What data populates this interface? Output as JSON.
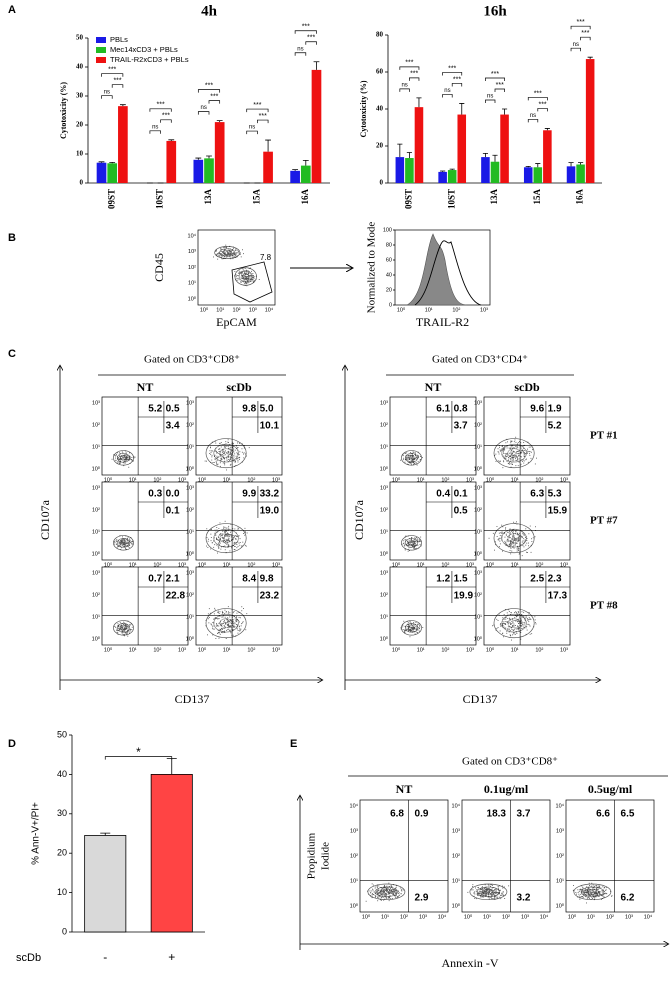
{
  "panel_labels": [
    "A",
    "B",
    "C",
    "D",
    "E"
  ],
  "chart_data": [
    {
      "type": "bar",
      "title": "4h",
      "y_label": "Cytotoxicity (%)",
      "categories": [
        "09ST",
        "10ST",
        "13A",
        "15A",
        "16A"
      ],
      "series": [
        {
          "name": "PBLs",
          "color": "#1a1ae6",
          "values": [
            7,
            0,
            8,
            0,
            4.2
          ],
          "errors": [
            0.3,
            0,
            0.6,
            0,
            0.4
          ]
        },
        {
          "name": "Mec14xCD3 + PBLs",
          "color": "#22bb22",
          "values": [
            6.8,
            0,
            8.5,
            0,
            6
          ],
          "errors": [
            0.3,
            0,
            0.8,
            0,
            1.8
          ]
        },
        {
          "name": "TRAIL-R2xCD3 + PBLs",
          "color": "#ee1111",
          "values": [
            26.5,
            14.5,
            21,
            10.8,
            39
          ],
          "errors": [
            0.5,
            0.4,
            0.5,
            4,
            2.8
          ]
        }
      ],
      "ylim": [
        0,
        50
      ],
      "yticks": [
        0,
        10,
        20,
        30,
        40,
        50
      ],
      "legend": "upper-left",
      "significance": [
        [
          "ns",
          "***",
          "***"
        ],
        [
          "ns",
          "***",
          "***"
        ],
        [
          "ns",
          "***",
          "***"
        ],
        [
          "ns",
          "***",
          "***"
        ],
        [
          "ns",
          "***",
          "***"
        ]
      ]
    },
    {
      "type": "bar",
      "title": "16h",
      "y_label": "Cytotoxicity (%)",
      "categories": [
        "09ST",
        "10ST",
        "13A",
        "15A",
        "16A"
      ],
      "series": [
        {
          "name": "PBLs",
          "color": "#1a1ae6",
          "values": [
            14,
            6,
            14,
            8.5,
            9
          ],
          "errors": [
            7,
            0.5,
            2,
            0.5,
            2
          ]
        },
        {
          "name": "Mec14xCD3 + PBLs",
          "color": "#22bb22",
          "values": [
            13.5,
            7,
            11.5,
            8.5,
            10
          ],
          "errors": [
            3,
            0.5,
            3.5,
            2,
            1
          ]
        },
        {
          "name": "TRAIL-R2xCD3 + PBLs",
          "color": "#ee1111",
          "values": [
            41,
            37,
            37,
            28.5,
            67
          ],
          "errors": [
            5,
            6,
            3,
            1,
            1
          ]
        }
      ],
      "ylim": [
        0,
        80
      ],
      "yticks": [
        0,
        20,
        40,
        60,
        80
      ],
      "significance": [
        [
          "ns",
          "***",
          "***"
        ],
        [
          "ns",
          "***",
          "***"
        ],
        [
          "ns",
          "***",
          "***"
        ],
        [
          "ns",
          "***",
          "***"
        ],
        [
          "ns",
          "***",
          "***"
        ]
      ]
    },
    {
      "type": "bar",
      "y_label": "% Ann-V+/PI+",
      "x_label": "scDb",
      "categories": [
        "-",
        "+"
      ],
      "values": [
        24.5,
        40
      ],
      "errors": [
        0.6,
        4
      ],
      "colors": [
        "#d9d9d9",
        "#ff4444"
      ],
      "ylim": [
        0,
        50
      ],
      "yticks": [
        0,
        10,
        20,
        30,
        40,
        50
      ],
      "significance": [
        "*"
      ]
    }
  ],
  "panel_b": {
    "contour": {
      "y_label": "CD45",
      "x_label": "EpCAM",
      "gate_value": "7.8",
      "xticks": [
        "10⁰",
        "10¹",
        "10²",
        "10³",
        "10⁴"
      ],
      "yticks": [
        "10⁰",
        "10¹",
        "10²",
        "10³",
        "10⁴"
      ]
    },
    "histogram": {
      "y_label": "Normalized to Mode",
      "x_label": "TRAIL-R2",
      "ylim": [
        0,
        100
      ],
      "yticks": [
        0,
        20,
        40,
        60,
        80,
        100
      ],
      "xticks": [
        "10⁰",
        "10¹",
        "10²",
        "10³"
      ]
    }
  },
  "panel_c": {
    "ticks": [
      "10⁰",
      "10¹",
      "10²",
      "10³"
    ],
    "patients": [
      "PT #1",
      "PT #7",
      "PT #8"
    ],
    "groups": [
      {
        "header": "Gated on CD3⁺CD8⁺",
        "conditions": [
          "NT",
          "scDb"
        ],
        "y_label": "CD107a",
        "x_label": "CD137",
        "quadrants": [
          [
            [
              "5.2",
              "0.5",
              "3.4"
            ],
            [
              "9.8",
              "5.0",
              "10.1"
            ]
          ],
          [
            [
              "0.3",
              "0.0",
              "0.1"
            ],
            [
              "9.9",
              "33.2",
              "19.0"
            ]
          ],
          [
            [
              "0.7",
              "2.1",
              "22.8"
            ],
            [
              "8.4",
              "9.8",
              "23.2"
            ]
          ]
        ]
      },
      {
        "header": "Gated on CD3⁺CD4⁺",
        "conditions": [
          "NT",
          "scDb"
        ],
        "y_label": "CD107a",
        "x_label": "CD137",
        "quadrants": [
          [
            [
              "6.1",
              "0.8",
              "3.7"
            ],
            [
              "9.6",
              "1.9",
              "5.2"
            ]
          ],
          [
            [
              "0.4",
              "0.1",
              "0.5"
            ],
            [
              "6.3",
              "5.3",
              "15.9"
            ]
          ],
          [
            [
              "1.2",
              "1.5",
              "19.9"
            ],
            [
              "2.5",
              "2.3",
              "17.3"
            ]
          ]
        ]
      }
    ]
  },
  "panel_e": {
    "header": "Gated on CD3⁺CD8⁺",
    "conditions": [
      "NT",
      "0.1ug/ml",
      "0.5ug/ml"
    ],
    "y_label": [
      "Propidium",
      "Iodide"
    ],
    "x_label": "Annexin -V",
    "ticks": [
      "10⁰",
      "10¹",
      "10²",
      "10³",
      "10⁴"
    ],
    "quadrants": [
      [
        "6.8",
        "0.9",
        "2.9"
      ],
      [
        "18.3",
        "3.7",
        "3.2"
      ],
      [
        "6.6",
        "6.5",
        "6.2"
      ]
    ]
  }
}
